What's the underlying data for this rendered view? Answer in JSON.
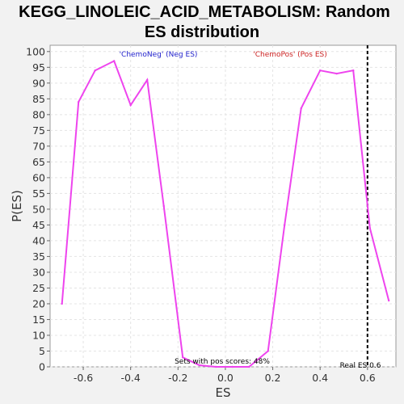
{
  "chart_data": {
    "type": "line",
    "title_line1": "KEGG_LINOLEIC_ACID_METABOLISM: Random",
    "title_line2": "ES distribution",
    "xlabel": "ES",
    "ylabel": "P(ES)",
    "xlim": [
      -0.74,
      0.72
    ],
    "ylim": [
      0,
      102
    ],
    "x_ticks": [
      -0.6,
      -0.4,
      -0.2,
      0.0,
      0.2,
      0.4,
      0.6
    ],
    "x_tick_labels": [
      "-0.6",
      "-0.4",
      "-0.2",
      "0.0",
      "0.2",
      "0.4",
      "0.6"
    ],
    "y_ticks": [
      0,
      5,
      10,
      15,
      20,
      25,
      30,
      35,
      40,
      45,
      50,
      55,
      60,
      65,
      70,
      75,
      80,
      85,
      90,
      95,
      100
    ],
    "grid": true,
    "series": [
      {
        "color": "#ee44ee",
        "x": [
          -0.69,
          -0.62,
          -0.55,
          -0.47,
          -0.4,
          -0.33,
          -0.26,
          -0.18,
          -0.11,
          -0.04,
          0.03,
          0.1,
          0.18,
          0.25,
          0.32,
          0.4,
          0.47,
          0.54,
          0.61,
          0.69
        ],
        "y": [
          20,
          84,
          94,
          97,
          83,
          91,
          51,
          3,
          0.5,
          0,
          0,
          0,
          5,
          45,
          82,
          94,
          93,
          94,
          44,
          21
        ]
      }
    ],
    "real_es": 0.6,
    "annotations": {
      "neg_label": "'ChemoNeg' (Neg ES)",
      "pos_label": "'ChemoPos' (Pos ES)",
      "sets_label": "Sets with pos scores: 48%",
      "real_es_label": "Real ES 0.6"
    },
    "colors": {
      "neg": "#2222cc",
      "pos": "#cc2222",
      "plot_bg": "#ffffff",
      "page_bg": "#f2f2f2"
    }
  }
}
